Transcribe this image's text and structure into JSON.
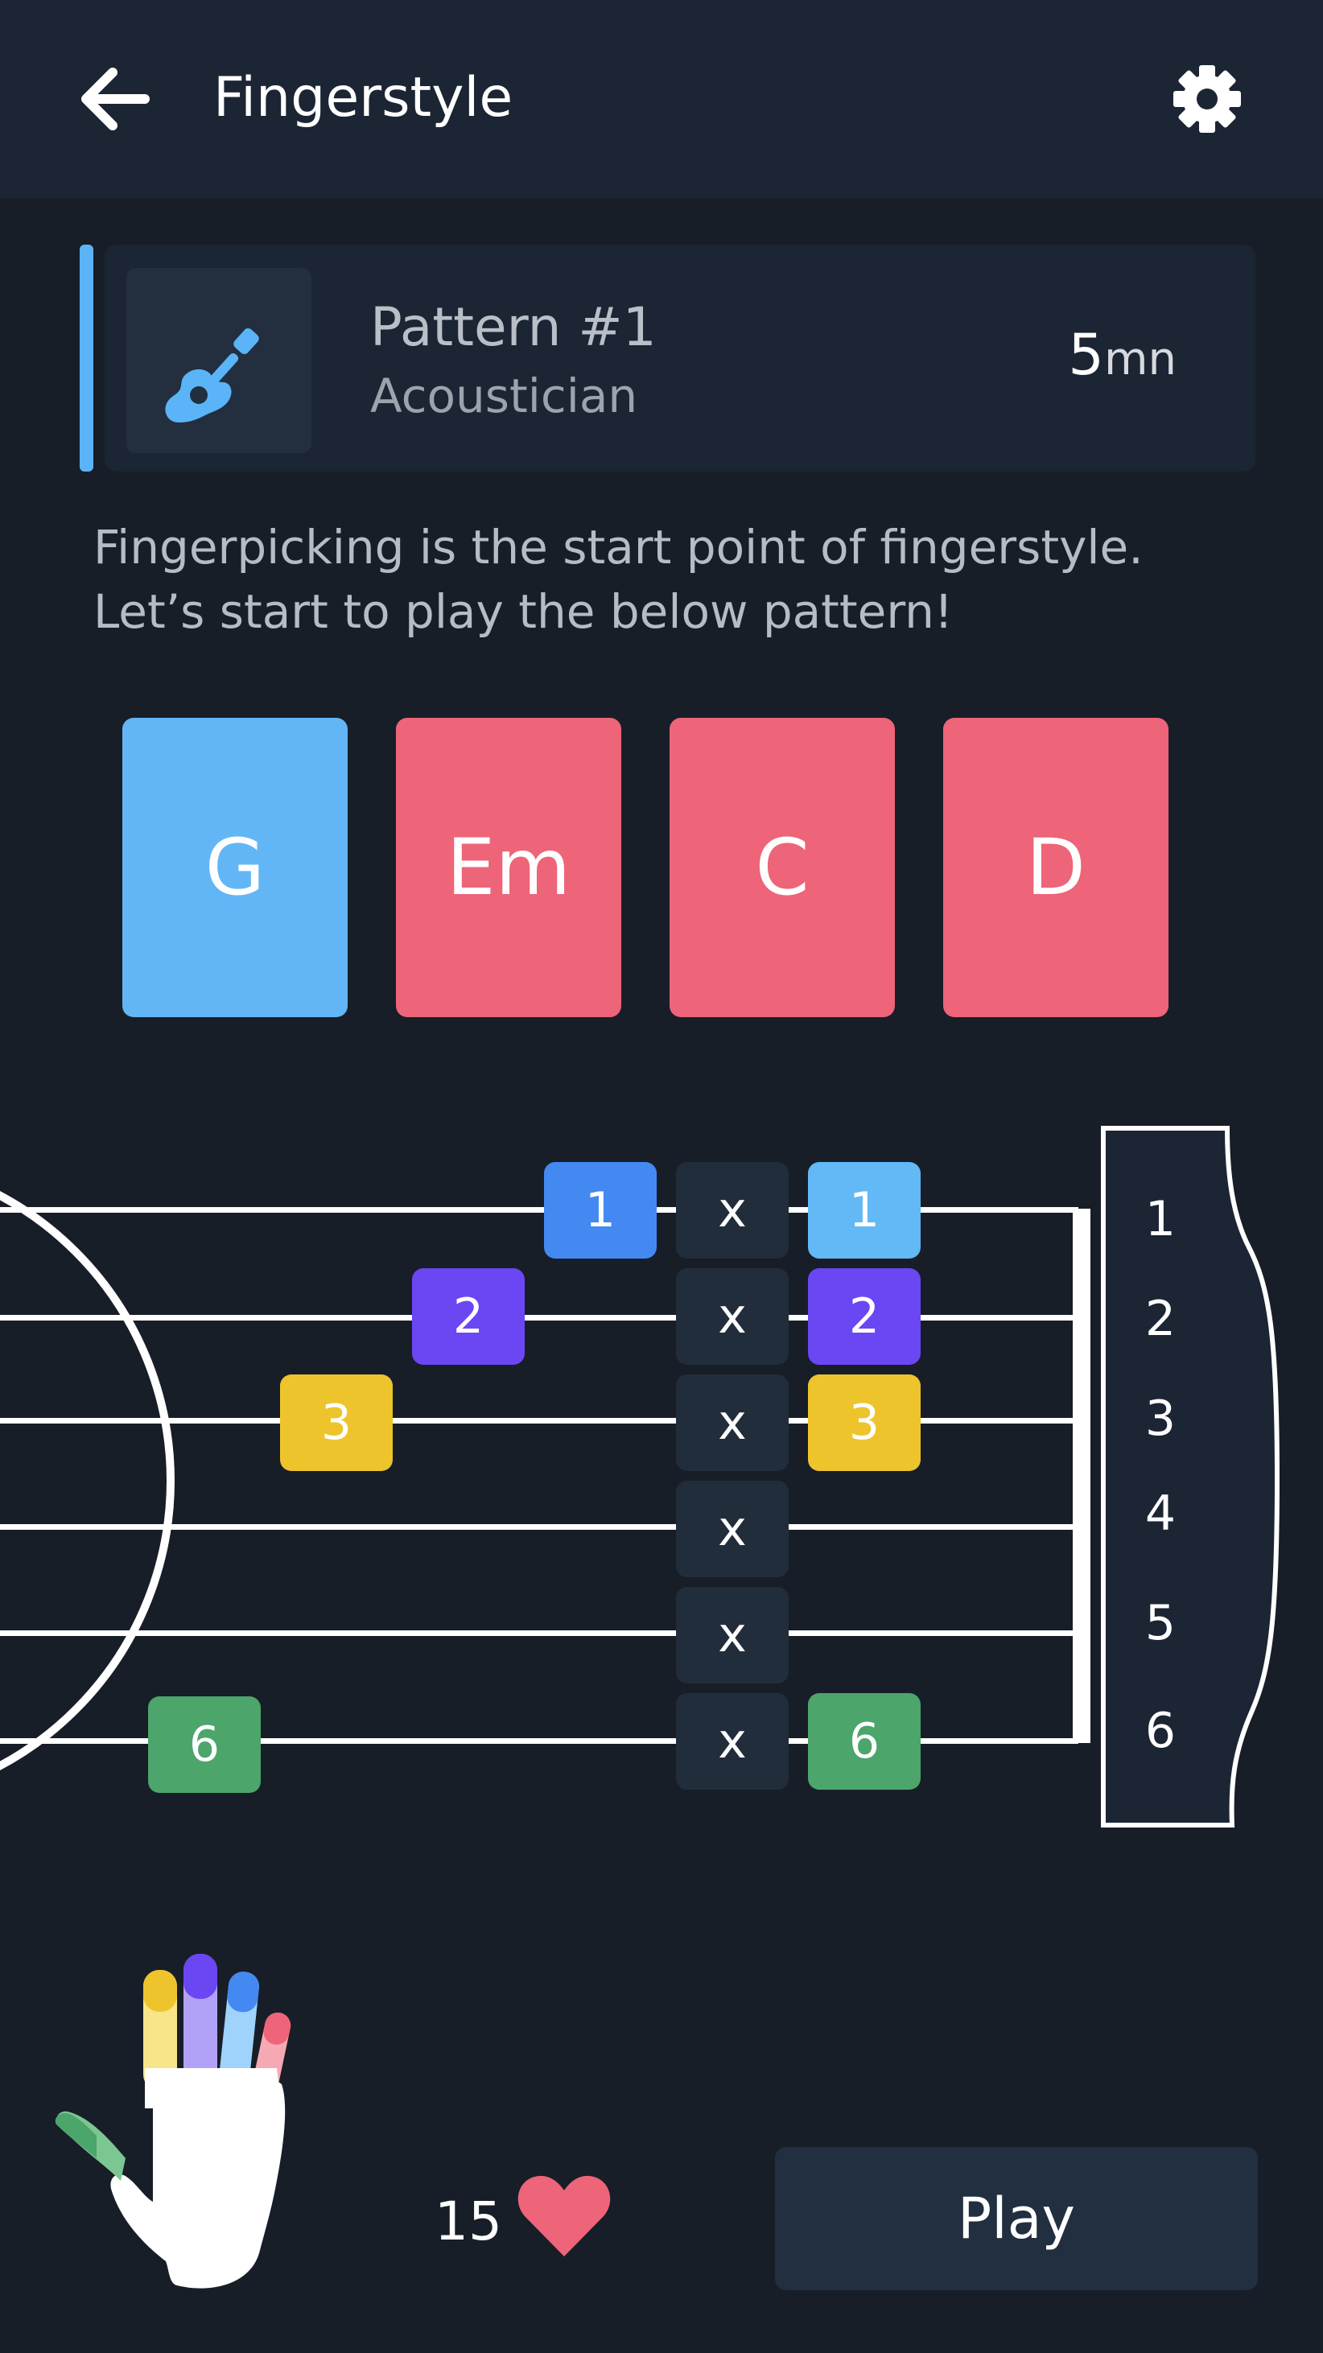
{
  "header": {
    "title": "Fingerstyle",
    "back_icon": "arrow-left-icon",
    "settings_icon": "gear-icon"
  },
  "pattern": {
    "title": "Pattern #1",
    "subtitle": "Acoustician",
    "duration_value": "5",
    "duration_unit": "mn",
    "icon": "guitar-icon"
  },
  "description": "Fingerpicking is the start point of fingerstyle. Let’s start to play the below pattern!",
  "chords": [
    {
      "name": "G",
      "color": "#62b6f6"
    },
    {
      "name": "Em",
      "color": "#ee6478"
    },
    {
      "name": "C",
      "color": "#ee6478"
    },
    {
      "name": "D",
      "color": "#ee6478"
    }
  ],
  "fretboard": {
    "strings": [
      "1",
      "2",
      "3",
      "4",
      "5",
      "6"
    ],
    "mute_mark": "x",
    "notes_left": [
      {
        "label": "1",
        "color": "#4489f2"
      },
      {
        "label": "2",
        "color": "#6b46f3"
      },
      {
        "label": "3",
        "color": "#eec42d"
      },
      {
        "label": "6",
        "color": "#4ca56a"
      }
    ],
    "notes_right": [
      {
        "label": "1",
        "color": "#63b8f6"
      },
      {
        "label": "2",
        "color": "#6b46f3"
      },
      {
        "label": "3",
        "color": "#eec42d"
      },
      {
        "label": "6",
        "color": "#4ca56a"
      }
    ]
  },
  "footer": {
    "likes": "15",
    "like_icon": "heart-icon",
    "hand_icon": "hand-icon",
    "play_label": "Play"
  },
  "colors": {
    "background": "#181e28",
    "header": "#1b2533",
    "accent": "#5ab4f7",
    "heart": "#ee6478"
  }
}
